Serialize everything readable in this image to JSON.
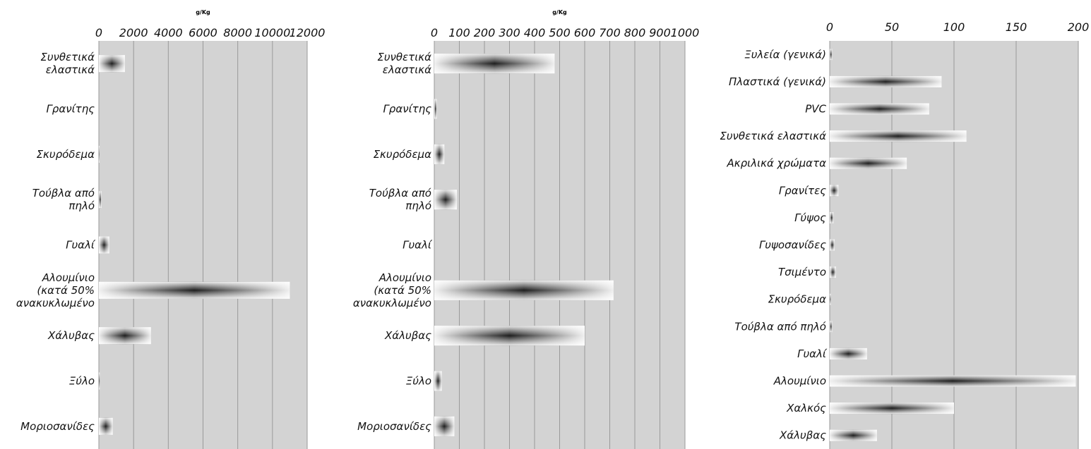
{
  "colors": {
    "plot_bg": "#d3d3d3",
    "grid": "#9a9a9a",
    "bar_edge": "#f2f2f2",
    "bar_center": "#1e1e1e",
    "text": "#111111"
  },
  "chart_data": [
    {
      "type": "bar",
      "orientation": "horizontal",
      "unit_label": "g/Kg",
      "xlim": [
        0,
        12000
      ],
      "xticks": [
        0,
        2000,
        4000,
        6000,
        8000,
        10000,
        12000
      ],
      "grid": true,
      "categories": [
        [
          "Συνθετικά",
          "ελαστικά"
        ],
        [
          "Γρανίτης"
        ],
        [
          "Σκυρόδεμα"
        ],
        [
          "Τούβλα από",
          "πηλό"
        ],
        [
          "Γυαλί"
        ],
        [
          "Αλουμίνιο",
          "(κατά 50%",
          "ανακυκλωμένο"
        ],
        [
          "Χάλυβας"
        ],
        [
          "Ξύλο"
        ],
        [
          "Μοριοσανίδες"
        ]
      ],
      "values": [
        1500,
        0,
        40,
        150,
        600,
        11000,
        3000,
        60,
        800
      ]
    },
    {
      "type": "bar",
      "orientation": "horizontal",
      "unit_label": "g/Kg",
      "xlim": [
        0,
        1000
      ],
      "xticks": [
        0,
        100,
        200,
        300,
        400,
        500,
        600,
        700,
        800,
        900,
        1000
      ],
      "grid": true,
      "categories": [
        [
          "Συνθετικά",
          "ελαστικά"
        ],
        [
          "Γρανίτης"
        ],
        [
          "Σκυρόδεμα"
        ],
        [
          "Τούβλα από",
          "πηλό"
        ],
        [
          "Γυαλί"
        ],
        [
          "Αλουμίνιο",
          "(κατά 50%",
          "ανακυκλωμένο"
        ],
        [
          "Χάλυβας"
        ],
        [
          "Ξύλο"
        ],
        [
          "Μοριοσανίδες"
        ]
      ],
      "values": [
        480,
        10,
        40,
        90,
        0,
        715,
        600,
        30,
        80
      ]
    },
    {
      "type": "bar",
      "orientation": "horizontal",
      "unit_label": "",
      "xlim": [
        0,
        200
      ],
      "xticks": [
        0,
        50,
        100,
        150,
        200
      ],
      "grid": true,
      "categories": [
        [
          "Ξυλεία (γενικά)"
        ],
        [
          "Πλαστικά (γενικά)"
        ],
        [
          "PVC"
        ],
        [
          "Συνθετικά ελαστικά"
        ],
        [
          "Ακριλικά χρώματα"
        ],
        [
          "Γρανίτες"
        ],
        [
          "Γύψος"
        ],
        [
          "Γυψοσανίδες"
        ],
        [
          "Τσιμέντο"
        ],
        [
          "Σκυρόδεμα"
        ],
        [
          "Τούβλα από πηλό"
        ],
        [
          "Γυαλί"
        ],
        [
          "Αλουμίνιο"
        ],
        [
          "Χαλκός"
        ],
        [
          "Χάλυβας"
        ]
      ],
      "values": [
        2,
        90,
        80,
        110,
        62,
        7,
        3,
        4,
        5,
        1,
        2,
        30,
        198,
        100,
        38
      ]
    }
  ]
}
